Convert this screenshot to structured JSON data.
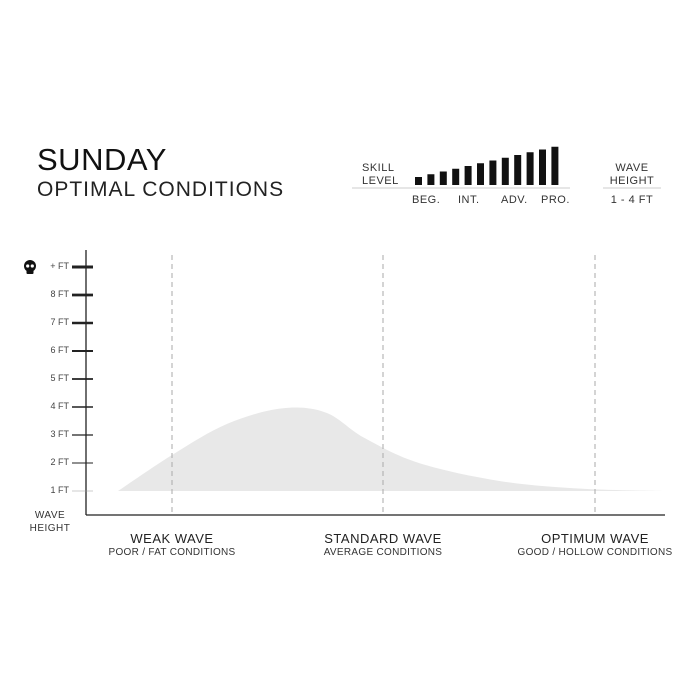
{
  "header": {
    "title": "SUNDAY",
    "subtitle": "OPTIMAL CONDITIONS"
  },
  "skill": {
    "label_line1": "SKILL",
    "label_line2": "LEVEL",
    "bar_count": 12,
    "levels": [
      "BEG.",
      "INT.",
      "ADV.",
      "PRO."
    ],
    "bar_color": "#111111"
  },
  "wave_height_box": {
    "label_line1": "WAVE",
    "label_line2": "HEIGHT",
    "value": "1 - 4 FT"
  },
  "chart_data": {
    "type": "area",
    "title": "",
    "ylabel_line1": "WAVE",
    "ylabel_line2": "HEIGHT",
    "y_ticks": [
      "1 FT",
      "2 FT",
      "3 FT",
      "4 FT",
      "5 FT",
      "6 FT",
      "7 FT",
      "8 FT",
      "+ FT"
    ],
    "top_tick_icon": "skull-icon",
    "ylim": [
      0,
      9
    ],
    "categories": [
      {
        "name": "WEAK WAVE",
        "desc": "POOR / FAT CONDITIONS"
      },
      {
        "name": "STANDARD WAVE",
        "desc": "AVERAGE CONDITIONS"
      },
      {
        "name": "OPTIMUM WAVE",
        "desc": "GOOD / HOLLOW CONDITIONS"
      }
    ],
    "x": [
      0,
      0.1,
      0.2,
      0.3,
      0.38,
      0.45,
      0.55,
      0.7,
      0.85,
      1.0
    ],
    "y": [
      1,
      2.3,
      3.4,
      3.95,
      3.8,
      2.9,
      2.0,
      1.35,
      1.08,
      1.0
    ],
    "fill_color": "#e8e8e8",
    "grid": false
  }
}
